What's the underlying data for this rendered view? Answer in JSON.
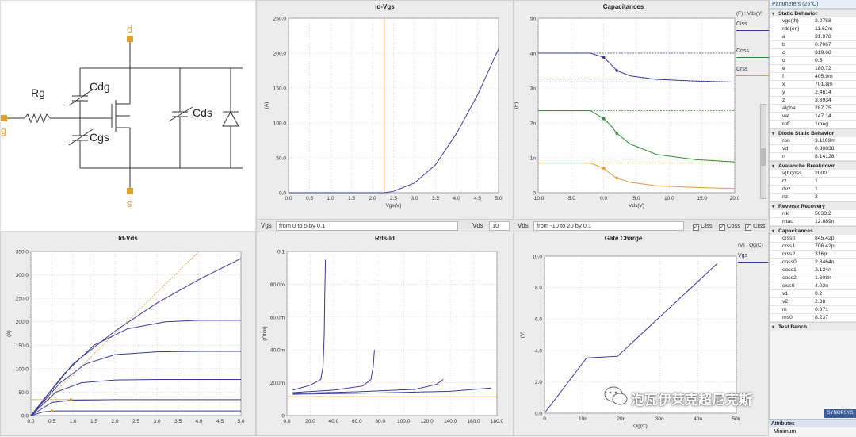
{
  "colors": {
    "blue": "#3a3a9a",
    "orange": "#e09a3a",
    "green": "#2e8b3a",
    "grid": "#c8c8c8"
  },
  "schematic": {
    "labels": {
      "d": "d",
      "g": "g",
      "s": "s",
      "rg": "Rg",
      "cdg": "Cdg",
      "cgs": "Cgs",
      "cds": "Cds"
    }
  },
  "chart_data": [
    {
      "type": "line",
      "title": "Id-Vgs",
      "xlabel": "Vgs(V)",
      "ylabel": "(A)",
      "xlim": [
        0,
        5
      ],
      "ylim": [
        0,
        250
      ],
      "xticks": [
        "0.0",
        "0.5",
        "1.0",
        "1.5",
        "2.0",
        "2.5",
        "3.0",
        "3.5",
        "4.0",
        "4.5",
        "5.0"
      ],
      "yticks": [
        "0.0",
        "50.0",
        "100.0",
        "150.0",
        "200.0",
        "250.0"
      ],
      "series": [
        {
          "x": [
            0,
            2.28,
            2.5,
            3.0,
            3.5,
            4.0,
            4.5,
            5.0
          ],
          "y": [
            0,
            0,
            2,
            14,
            40,
            85,
            140,
            206
          ]
        }
      ],
      "marker_x": 2.28
    },
    {
      "type": "line",
      "title": "Capacitances",
      "xlabel": "Vds(V)",
      "ylabel": "(F)",
      "xlim": [
        -10,
        20
      ],
      "ylim": [
        0,
        5
      ],
      "xticks": [
        "-10.0",
        "-5.0",
        "0.0",
        "5.0",
        "10.0",
        "15.0",
        "20.0"
      ],
      "yticks": [
        "0",
        "1n",
        "2n",
        "3n",
        "4n",
        "5n"
      ],
      "legend_header": "(F) : Vds(V)",
      "series": [
        {
          "name": "Ciss",
          "x": [
            -10,
            -2,
            0,
            1,
            2,
            4,
            8,
            14,
            20
          ],
          "y": [
            4.0,
            4.0,
            3.88,
            3.7,
            3.5,
            3.35,
            3.25,
            3.2,
            3.17
          ]
        },
        {
          "name": "Coss",
          "x": [
            -10,
            -2,
            0,
            1,
            2,
            4,
            8,
            14,
            20
          ],
          "y": [
            2.35,
            2.35,
            2.12,
            1.95,
            1.7,
            1.4,
            1.1,
            0.95,
            0.88
          ]
        },
        {
          "name": "Crss",
          "x": [
            -10,
            -2,
            0,
            1,
            2,
            4,
            8,
            14,
            20
          ],
          "y": [
            0.85,
            0.85,
            0.7,
            0.55,
            0.42,
            0.3,
            0.2,
            0.15,
            0.12
          ]
        }
      ],
      "ref_lines": [
        4.0,
        3.17,
        2.35,
        0.85
      ]
    },
    {
      "type": "line",
      "title": "Id-Vds",
      "xlabel": "",
      "ylabel": "(A)",
      "xlim": [
        0,
        5
      ],
      "ylim": [
        0,
        350
      ],
      "xticks": [
        "0.0",
        "0.5",
        "1.0",
        "1.5",
        "2.0",
        "2.5",
        "3.0",
        "3.5",
        "4.0",
        "4.5",
        "5.0"
      ],
      "yticks": [
        "0.0",
        "50.0",
        "100.0",
        "150.0",
        "200.0",
        "250.0",
        "300.0",
        "350.0"
      ],
      "series": [
        {
          "x": [
            0,
            1,
            2,
            3,
            4,
            5
          ],
          "y": [
            0,
            110,
            180,
            240,
            290,
            335
          ]
        },
        {
          "x": [
            0,
            0.8,
            1.5,
            2.3,
            3.2,
            4.0,
            5.0
          ],
          "y": [
            0,
            90,
            150,
            185,
            200,
            203,
            203
          ]
        },
        {
          "x": [
            0,
            0.7,
            1.3,
            2.0,
            3.0,
            4.0,
            5.0
          ],
          "y": [
            0,
            70,
            110,
            130,
            136,
            137,
            137
          ]
        },
        {
          "x": [
            0,
            0.6,
            1.2,
            2.0,
            3.0,
            5.0
          ],
          "y": [
            0,
            50,
            70,
            76,
            77,
            77
          ]
        },
        {
          "x": [
            0,
            0.5,
            1.0,
            2.0,
            5.0
          ],
          "y": [
            0,
            28,
            33,
            34,
            34
          ]
        },
        {
          "x": [
            0,
            0.3,
            0.6,
            1.5,
            5.0
          ],
          "y": [
            0,
            8,
            10,
            10,
            10
          ]
        }
      ],
      "dashed_line": {
        "x": [
          0,
          4.0
        ],
        "y": [
          0,
          350
        ]
      },
      "hline_y": 34
    },
    {
      "type": "line",
      "title": "Rds-Id",
      "xlabel": "",
      "ylabel": "(Ohm)",
      "xlim": [
        0,
        180
      ],
      "ylim": [
        0,
        0.1
      ],
      "xticks": [
        "0.0",
        "20.0",
        "40.0",
        "60.0",
        "80.0",
        "100.0",
        "120.0",
        "140.0",
        "160.0",
        "180.0"
      ],
      "yticks": [
        "0",
        "20.0m",
        "40.0m",
        "60.0m",
        "80.0m",
        "0.1"
      ],
      "series": [
        {
          "x": [
            5,
            20,
            29,
            31,
            32,
            32.5,
            33
          ],
          "y": [
            0.0155,
            0.0185,
            0.022,
            0.03,
            0.05,
            0.075,
            0.095
          ]
        },
        {
          "x": [
            5,
            40,
            65,
            72,
            74,
            75
          ],
          "y": [
            0.014,
            0.0155,
            0.018,
            0.022,
            0.03,
            0.04
          ]
        },
        {
          "x": [
            5,
            60,
            110,
            128,
            134
          ],
          "y": [
            0.0135,
            0.0145,
            0.016,
            0.019,
            0.022
          ]
        },
        {
          "x": [
            5,
            80,
            140,
            175
          ],
          "y": [
            0.013,
            0.0138,
            0.0148,
            0.0168
          ]
        }
      ],
      "hline_y": 0.0115
    },
    {
      "type": "line",
      "title": "Gate Charge",
      "xlabel": "Qg(C)",
      "ylabel": "(V)",
      "xlim": [
        0,
        50
      ],
      "ylim": [
        0,
        10.5
      ],
      "xticks": [
        "0",
        "10n",
        "20n",
        "30n",
        "40n",
        "50n"
      ],
      "yticks": [
        "0.0",
        "2.0",
        "4.0",
        "6.0",
        "8.0",
        "10.0"
      ],
      "legend_header": "(V) : Qg(C)",
      "series": [
        {
          "name": "Vgs",
          "x": [
            0,
            11,
            19,
            45
          ],
          "y": [
            0,
            3.7,
            3.8,
            10.0
          ]
        }
      ]
    }
  ],
  "controls": {
    "idvgs": {
      "label": "Vgs",
      "sweep": "from  0 to 5  by  0.1",
      "vds_label": "Vds",
      "vds_value": "10"
    },
    "cap": {
      "label": "Vds",
      "sweep": "from  -10 to 20  by  0.1",
      "ciss": "Ciss",
      "coss": "Coss",
      "crss": "Crss"
    }
  },
  "params": {
    "header": "Parameters (25°C)",
    "sections": [
      {
        "name": "Static Behavior",
        "rows": [
          [
            "vgs(th)",
            "2.2758"
          ],
          [
            "rds(on)",
            "11.62m"
          ],
          [
            "a",
            "31.978"
          ],
          [
            "b",
            "0.7067"
          ],
          [
            "c",
            "319.68"
          ],
          [
            "d",
            "0.5"
          ],
          [
            "e",
            "180.72"
          ],
          [
            "f",
            "405.9m"
          ],
          [
            "x",
            "701.8m"
          ],
          [
            "y",
            "2.4614"
          ],
          [
            "z",
            "3.3934"
          ],
          [
            "alpha",
            "287.75"
          ],
          [
            "vaf",
            "147.14"
          ],
          [
            "roff",
            "1meg"
          ]
        ]
      },
      {
        "name": "Diode Static Behavior",
        "rows": [
          [
            "ron",
            "3.1169m"
          ],
          [
            "vd",
            "0.80838"
          ],
          [
            "n",
            "8.14128"
          ]
        ]
      },
      {
        "name": "Avalanche Breakdown",
        "rows": [
          [
            "v(br)dss",
            "2000"
          ],
          [
            "rz",
            "1"
          ],
          [
            "dvz",
            "1"
          ],
          [
            "nz",
            "3"
          ]
        ]
      },
      {
        "name": "Reverse Recovery",
        "rows": [
          [
            "rrk",
            "5033.2"
          ],
          [
            "rrtau",
            "12.889n"
          ]
        ]
      },
      {
        "name": "Capacitances",
        "rows": [
          [
            "crss0",
            "845.42p"
          ],
          [
            "crss1",
            "706.42p"
          ],
          [
            "crss2",
            "316p"
          ],
          [
            "coss0",
            "2.3464n"
          ],
          [
            "coss1",
            "2.124n"
          ],
          [
            "coss2",
            "1.608n"
          ],
          [
            "ciss0",
            "4.02n"
          ],
          [
            "v1",
            "0.2"
          ],
          [
            "v2",
            "2.38"
          ],
          [
            "m",
            "0.871"
          ],
          [
            "ms0",
            "8.237"
          ]
        ]
      },
      {
        "name": "Test Bench",
        "rows": []
      }
    ],
    "attributes": "Attributes",
    "minimum": "Minimum"
  },
  "watermark": {
    "text": "泡瓦伊莱克超尼克斯",
    "logo": "SYNOPSYS"
  }
}
